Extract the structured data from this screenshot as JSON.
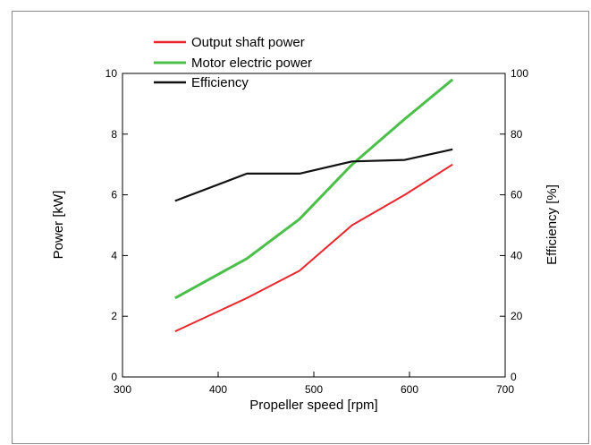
{
  "chart_data": {
    "type": "line",
    "xlabel": "Propeller speed [rpm]",
    "ylabel": "Power [kW]",
    "y2label": "Efficiency [%]",
    "xlim": [
      300,
      700
    ],
    "ylim": [
      0,
      10
    ],
    "y2lim": [
      0,
      100
    ],
    "x_ticks": [
      300,
      400,
      500,
      600,
      700
    ],
    "y_ticks": [
      0,
      2,
      4,
      6,
      8,
      10
    ],
    "y2_ticks": [
      0,
      20,
      40,
      60,
      80,
      100
    ],
    "grid": false,
    "legend_position": "top-left",
    "series": [
      {
        "name": "Output shaft power",
        "axis": "left",
        "color": "#e8262b",
        "x": [
          355,
          430,
          485,
          540,
          595,
          645
        ],
        "y": [
          1.5,
          2.6,
          3.5,
          5.0,
          6.0,
          7.0
        ]
      },
      {
        "name": "Motor electric power",
        "axis": "left",
        "color": "#4cbf4a",
        "x": [
          355,
          430,
          485,
          540,
          595,
          645
        ],
        "y": [
          2.6,
          3.9,
          5.2,
          7.0,
          8.5,
          9.8
        ]
      },
      {
        "name": "Efficiency",
        "axis": "right",
        "color": "#111111",
        "x": [
          355,
          430,
          485,
          540,
          595,
          645
        ],
        "y": [
          58,
          67,
          67,
          71,
          71.5,
          75
        ]
      }
    ]
  }
}
